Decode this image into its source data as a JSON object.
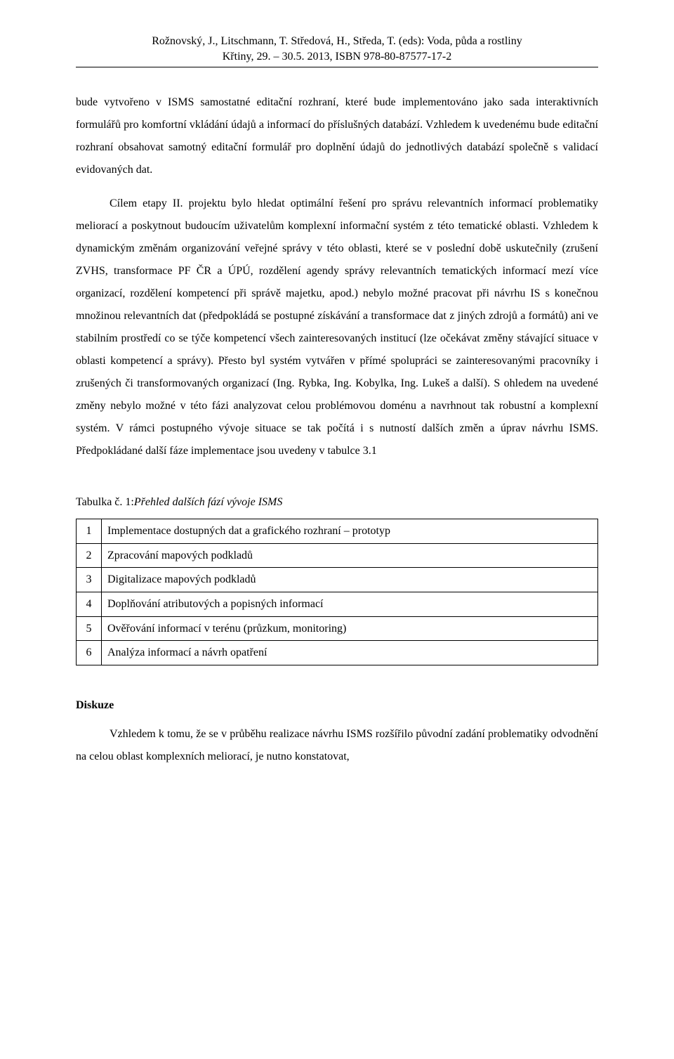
{
  "header": {
    "line1": "Rožnovský, J., Litschmann, T. Středová, H., Středa, T. (eds): Voda, půda a rostliny",
    "line2": "Křtiny, 29. – 30.5. 2013, ISBN 978-80-87577-17-2"
  },
  "paragraphs": {
    "p1": "bude vytvořeno v ISMS samostatné editační rozhraní, které bude implementováno jako sada interaktivních formulářů pro komfortní vkládání údajů a informací do příslušných databází. Vzhledem k uvedenému bude editační rozhraní obsahovat samotný editační formulář pro doplnění údajů do jednotlivých databází společně s validací evidovaných dat.",
    "p2": "Cílem etapy II. projektu bylo hledat optimální řešení pro správu relevantních informací problematiky meliorací a poskytnout budoucím uživatelům komplexní informační systém z této tematické oblasti. Vzhledem k dynamickým změnám organizování veřejné správy v této oblasti, které se v poslední době uskutečnily (zrušení ZVHS, transformace PF ČR a ÚPÚ, rozdělení agendy správy relevantních tematických informací mezí více organizací, rozdělení kompetencí při správě majetku, apod.) nebylo možné pracovat při návrhu IS s konečnou množinou relevantních dat (předpokládá se postupné získávání a transformace dat z jiných zdrojů a formátů) ani ve stabilním prostředí co se týče kompetencí všech zainteresovaných institucí (lze očekávat změny stávající situace v oblasti kompetencí a správy). Přesto byl systém vytvářen v přímé spolupráci se zainteresovanými pracovníky i zrušených či transformovaných organizací (Ing. Rybka, Ing. Kobylka, Ing. Lukeš a další). S ohledem na uvedené změny nebylo možné v této fázi analyzovat celou problémovou doménu a navrhnout tak robustní a komplexní systém. V rámci postupného vývoje situace se tak počítá i s nutností dalších změn a úprav návrhu ISMS. Předpokládané další fáze implementace jsou uvedeny v tabulce 3.1"
  },
  "table": {
    "caption_prefix": "Tabulka č. 1:",
    "caption_italic": "Přehled dalších fází vývoje ISMS",
    "rows": [
      {
        "n": "1",
        "text": "Implementace dostupných dat a grafického rozhraní – prototyp"
      },
      {
        "n": "2",
        "text": "Zpracování mapových podkladů"
      },
      {
        "n": "3",
        "text": "Digitalizace mapových podkladů"
      },
      {
        "n": "4",
        "text": "Doplňování atributových a popisných informací"
      },
      {
        "n": "5",
        "text": "Ověřování informací v terénu (průzkum, monitoring)"
      },
      {
        "n": "6",
        "text": "Analýza informací a návrh opatření"
      }
    ]
  },
  "discussion": {
    "heading": "Diskuze",
    "p1": "Vzhledem k tomu, že se v průběhu realizace návrhu ISMS rozšířilo původní zadání problematiky odvodnění na celou oblast komplexních meliorací, je nutno konstatovat,"
  }
}
